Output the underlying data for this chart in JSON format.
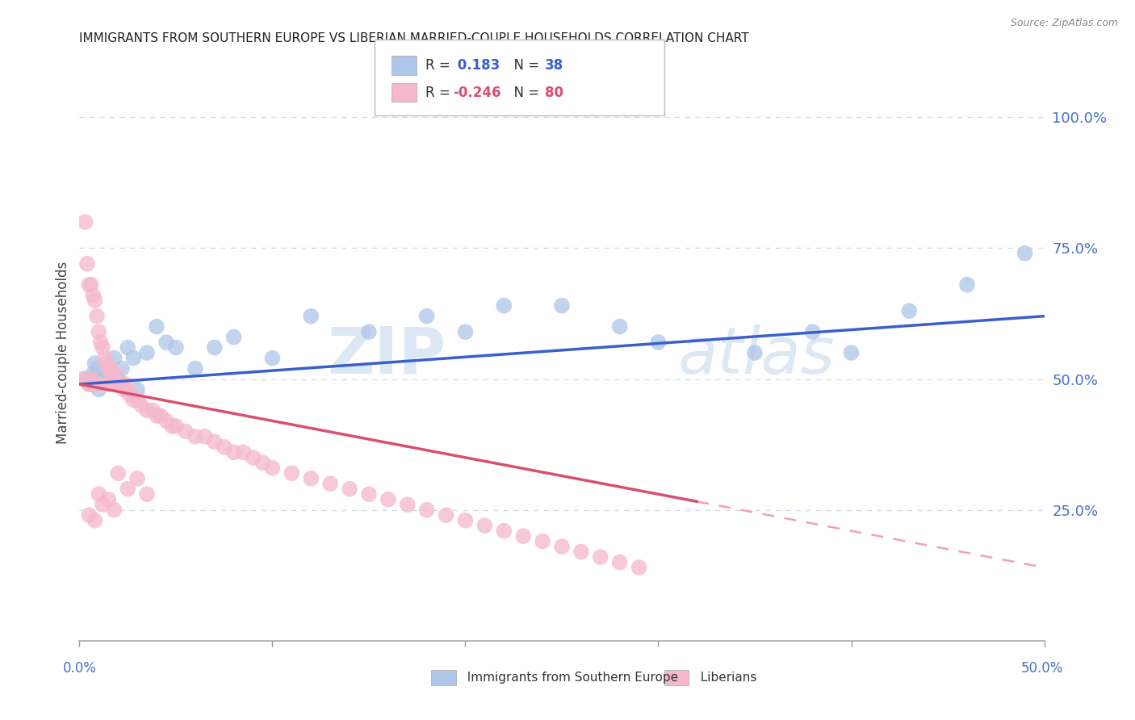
{
  "title": "IMMIGRANTS FROM SOUTHERN EUROPE VS LIBERIAN MARRIED-COUPLE HOUSEHOLDS CORRELATION CHART",
  "source": "Source: ZipAtlas.com",
  "ylabel": "Married-couple Households",
  "legend_blue_r": "0.183",
  "legend_blue_n": "38",
  "legend_pink_r": "-0.246",
  "legend_pink_n": "80",
  "blue_fill": "#aec6e8",
  "pink_fill": "#f5b8cc",
  "blue_line_color": "#3a5fcd",
  "pink_line_solid_color": "#d94f70",
  "pink_line_dash_color": "#f0a0b8",
  "watermark_color": "#dde8f5",
  "grid_color": "#d0d8e8",
  "right_tick_color": "#4472C4",
  "xlim": [
    0.0,
    0.5
  ],
  "ylim": [
    0.0,
    1.1
  ],
  "yticks": [
    0.25,
    0.5,
    0.75,
    1.0
  ],
  "ytick_labels": [
    "25.0%",
    "50.0%",
    "75.0%",
    "100.0%"
  ],
  "blue_x": [
    0.003,
    0.005,
    0.007,
    0.008,
    0.009,
    0.01,
    0.012,
    0.013,
    0.015,
    0.016,
    0.018,
    0.02,
    0.022,
    0.025,
    0.028,
    0.03,
    0.035,
    0.04,
    0.045,
    0.05,
    0.06,
    0.07,
    0.08,
    0.1,
    0.12,
    0.15,
    0.18,
    0.2,
    0.22,
    0.25,
    0.28,
    0.3,
    0.35,
    0.38,
    0.4,
    0.43,
    0.46,
    0.49
  ],
  "blue_y": [
    0.5,
    0.49,
    0.51,
    0.53,
    0.52,
    0.48,
    0.495,
    0.505,
    0.515,
    0.5,
    0.54,
    0.5,
    0.52,
    0.56,
    0.54,
    0.48,
    0.55,
    0.6,
    0.57,
    0.56,
    0.52,
    0.56,
    0.58,
    0.54,
    0.62,
    0.59,
    0.62,
    0.59,
    0.64,
    0.64,
    0.6,
    0.57,
    0.55,
    0.59,
    0.55,
    0.63,
    0.68,
    0.74
  ],
  "pink_x": [
    0.002,
    0.003,
    0.004,
    0.005,
    0.005,
    0.006,
    0.006,
    0.007,
    0.007,
    0.008,
    0.008,
    0.009,
    0.01,
    0.01,
    0.011,
    0.012,
    0.013,
    0.014,
    0.015,
    0.015,
    0.016,
    0.017,
    0.018,
    0.019,
    0.02,
    0.02,
    0.022,
    0.023,
    0.024,
    0.025,
    0.026,
    0.028,
    0.03,
    0.032,
    0.035,
    0.038,
    0.04,
    0.042,
    0.045,
    0.048,
    0.05,
    0.055,
    0.06,
    0.065,
    0.07,
    0.075,
    0.08,
    0.085,
    0.09,
    0.095,
    0.1,
    0.11,
    0.12,
    0.13,
    0.14,
    0.15,
    0.16,
    0.17,
    0.18,
    0.19,
    0.2,
    0.21,
    0.22,
    0.23,
    0.24,
    0.25,
    0.26,
    0.27,
    0.28,
    0.29,
    0.005,
    0.008,
    0.01,
    0.012,
    0.015,
    0.018,
    0.02,
    0.025,
    0.03,
    0.035
  ],
  "pink_y": [
    0.5,
    0.8,
    0.72,
    0.68,
    0.49,
    0.68,
    0.5,
    0.66,
    0.49,
    0.65,
    0.49,
    0.62,
    0.59,
    0.49,
    0.57,
    0.56,
    0.54,
    0.53,
    0.52,
    0.49,
    0.52,
    0.51,
    0.5,
    0.51,
    0.49,
    0.49,
    0.49,
    0.48,
    0.49,
    0.48,
    0.47,
    0.46,
    0.46,
    0.45,
    0.44,
    0.44,
    0.43,
    0.43,
    0.42,
    0.41,
    0.41,
    0.4,
    0.39,
    0.39,
    0.38,
    0.37,
    0.36,
    0.36,
    0.35,
    0.34,
    0.33,
    0.32,
    0.31,
    0.3,
    0.29,
    0.28,
    0.27,
    0.26,
    0.25,
    0.24,
    0.23,
    0.22,
    0.21,
    0.2,
    0.19,
    0.18,
    0.17,
    0.16,
    0.15,
    0.14,
    0.24,
    0.23,
    0.28,
    0.26,
    0.27,
    0.25,
    0.32,
    0.29,
    0.31,
    0.28
  ]
}
